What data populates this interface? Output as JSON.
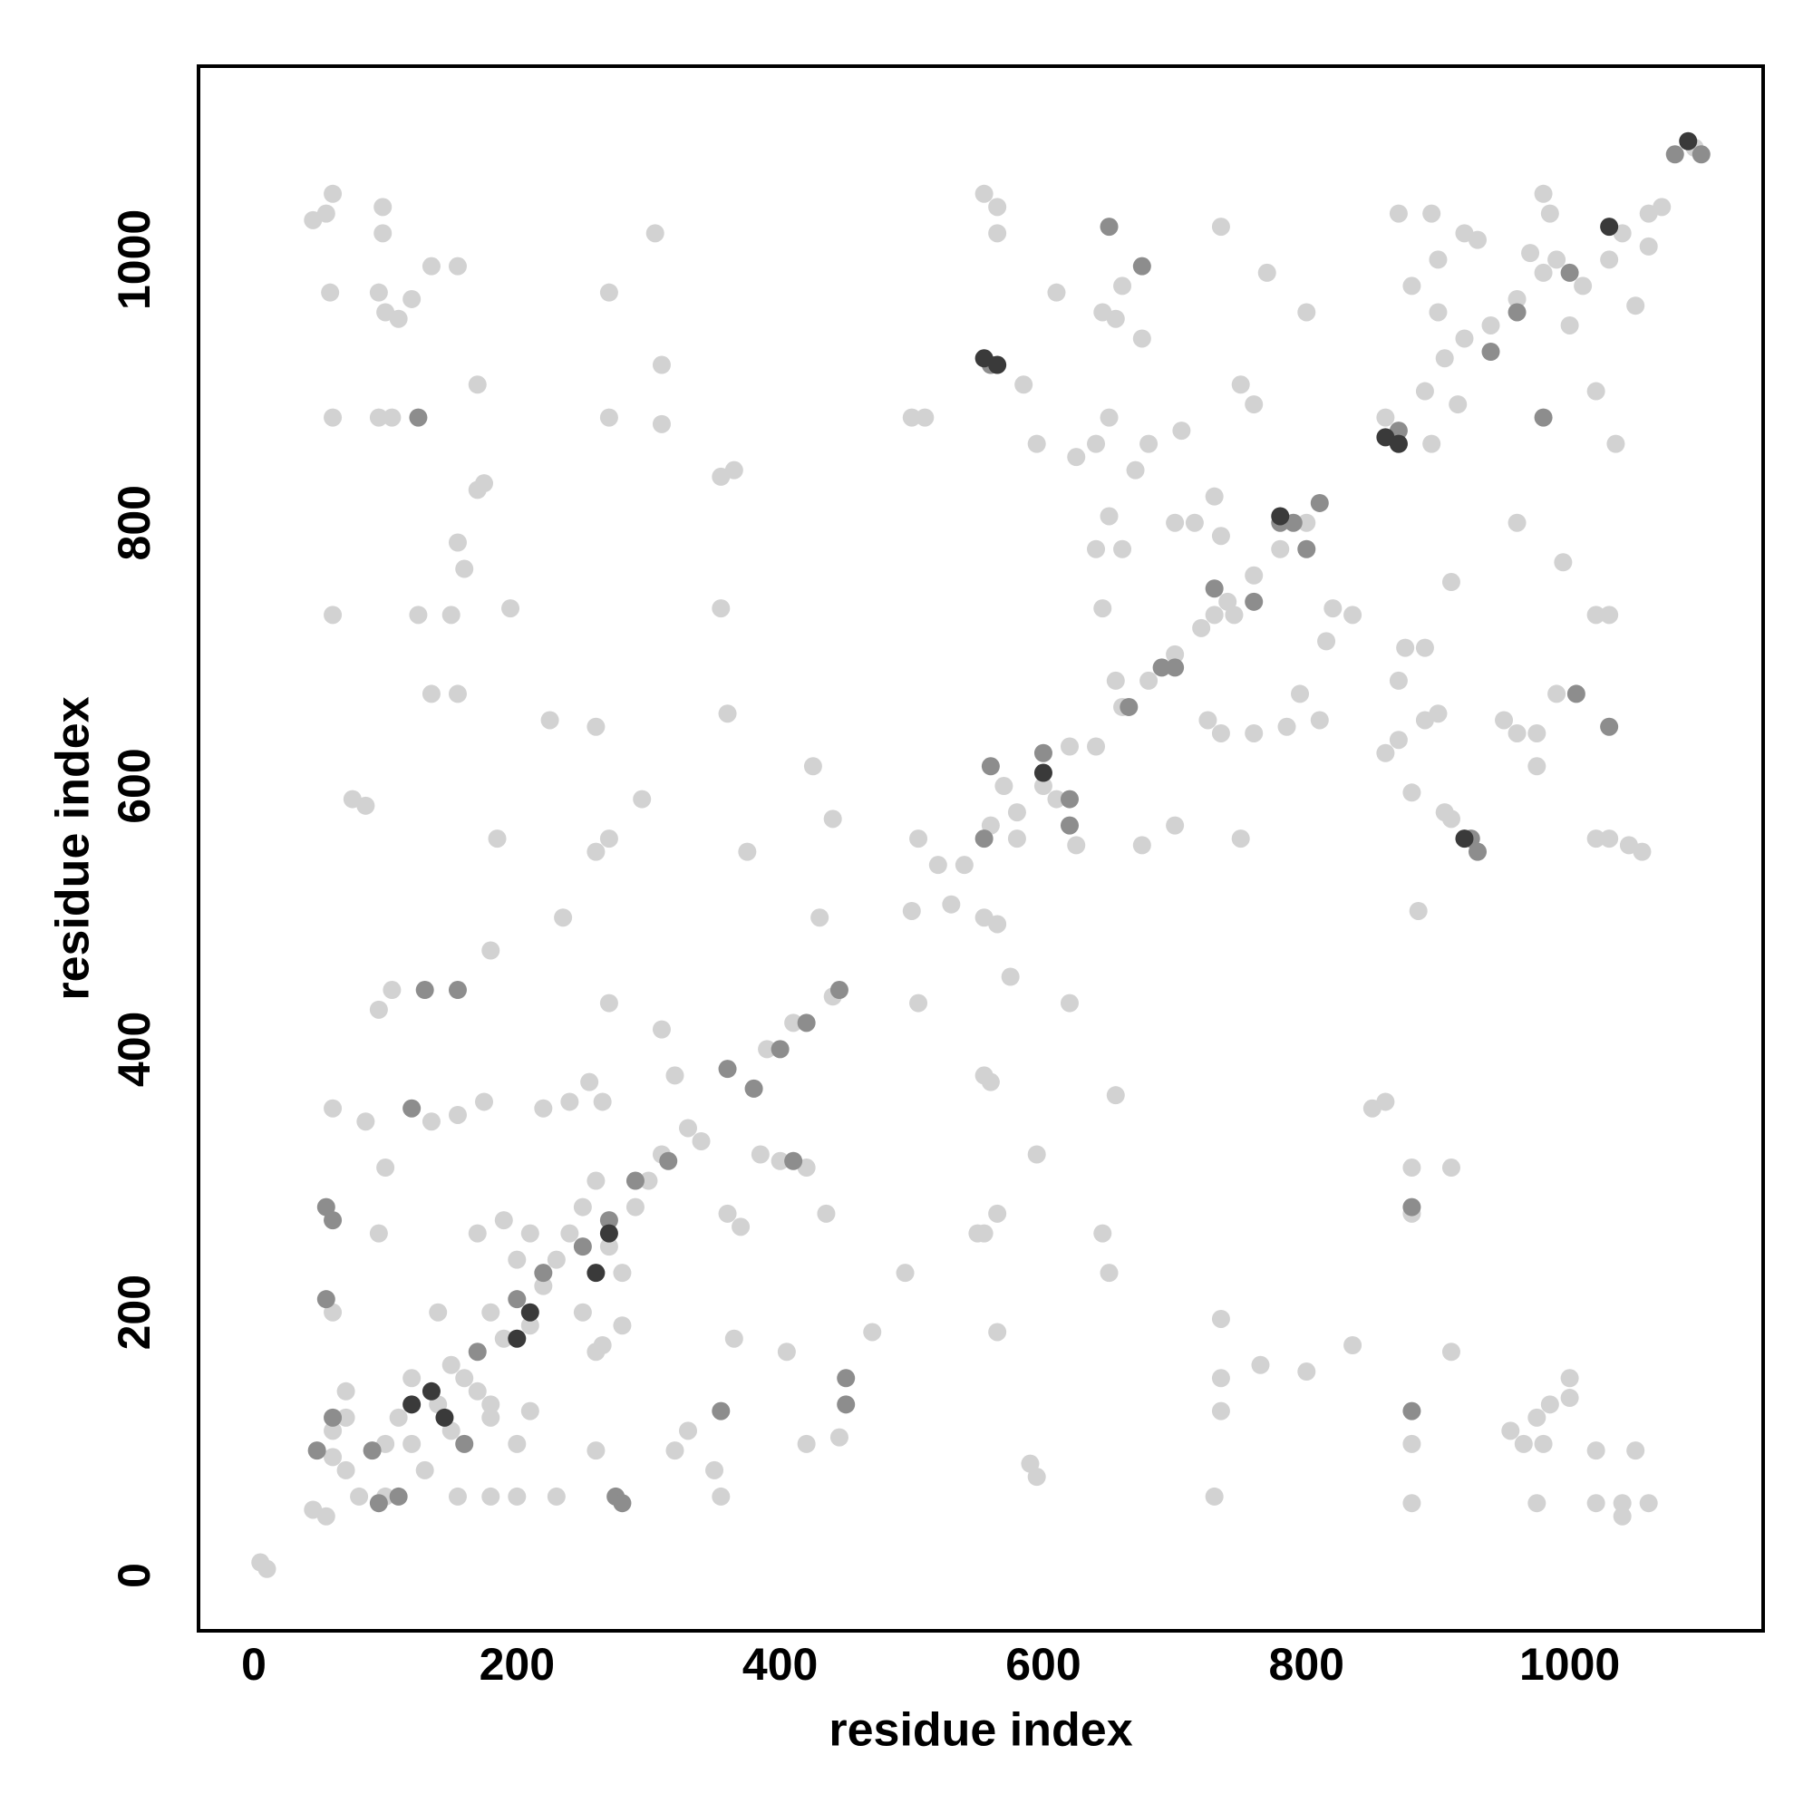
{
  "chart_data": {
    "type": "scatter",
    "xlabel": "residue index",
    "ylabel": "residue index",
    "xlim": [
      -42,
      1147
    ],
    "ylim": [
      -42,
      1147
    ],
    "xticks": [
      0,
      200,
      400,
      600,
      800,
      1000
    ],
    "yticks": [
      0,
      200,
      400,
      600,
      800,
      1000
    ],
    "grid": false,
    "series": [
      {
        "color": "#d2d2d2",
        "x": [
          5,
          10,
          45,
          55,
          55,
          60,
          45,
          58,
          98,
          98,
          95,
          100,
          110,
          120,
          135,
          155,
          60,
          95,
          105,
          170,
          170,
          175,
          155,
          160,
          60,
          125,
          150,
          195,
          135,
          155,
          225,
          260,
          75,
          85,
          185,
          270,
          260,
          295,
          355,
          360,
          355,
          365,
          270,
          270,
          305,
          310,
          310,
          375,
          425,
          430,
          440,
          235,
          180,
          105,
          95,
          270,
          310,
          320,
          255,
          265,
          240,
          220,
          135,
          85,
          155,
          175,
          60,
          100,
          95,
          60,
          70,
          70,
          180,
          210,
          180,
          200,
          155,
          230,
          260,
          265,
          280,
          330,
          320,
          350,
          355,
          365,
          405,
          420,
          435,
          360,
          370,
          385,
          400,
          420,
          470,
          445,
          495,
          520,
          530,
          540,
          555,
          565,
          560,
          575,
          565,
          555,
          565,
          590,
          595,
          595,
          595,
          610,
          625,
          640,
          650,
          645,
          655,
          660,
          640,
          645,
          650,
          655,
          660,
          670,
          675,
          675,
          680,
          700,
          700,
          705,
          715,
          730,
          735,
          725,
          735,
          745,
          730,
          760,
          750,
          750,
          760,
          735,
          770,
          800,
          785,
          795,
          810,
          820,
          835,
          815,
          765,
          800,
          730,
          735,
          735,
          735,
          655,
          645,
          650,
          620,
          625,
          580,
          550,
          555,
          505,
          500,
          505,
          500,
          510,
          555,
          565,
          565,
          585,
          850,
          860,
          835,
          880,
          880,
          880,
          885,
          880,
          910,
          910,
          880,
          870,
          875,
          890,
          860,
          870,
          890,
          900,
          905,
          910,
          895,
          910,
          905,
          915,
          920,
          930,
          900,
          900,
          880,
          895,
          870,
          860,
          950,
          960,
          975,
          975,
          990,
          995,
          960,
          955,
          965,
          975,
          980,
          975,
          985,
          1000,
          1000,
          1020,
          1020,
          1040,
          1040,
          1050,
          1060,
          1020,
          1030,
          1045,
          1055,
          1020,
          1030,
          1020,
          1035,
          1050,
          1060,
          1070,
          1095,
          985,
          980,
          1000,
          1010,
          1030,
          1040,
          990,
          1060,
          970,
          100,
          110,
          120,
          130,
          140,
          150,
          160,
          170,
          180,
          190,
          200,
          210,
          220,
          230,
          240,
          250,
          260,
          270,
          280,
          290,
          300,
          330,
          340,
          380,
          390,
          410,
          440,
          120,
          140,
          170,
          190,
          250,
          260,
          210,
          180,
          100,
          80,
          70,
          60,
          60,
          150,
          200,
          310,
          600,
          610,
          620,
          640,
          660,
          680,
          700,
          720,
          740,
          760,
          780,
          800,
          580,
          560,
          570,
          890,
          920,
          940,
          960,
          980
        ],
        "values": [
          10,
          5,
          50,
          45,
          1035,
          1050,
          1030,
          975,
          1040,
          1020,
          975,
          960,
          955,
          970,
          995,
          995,
          880,
          880,
          880,
          905,
          825,
          830,
          785,
          765,
          730,
          730,
          730,
          735,
          670,
          670,
          650,
          645,
          590,
          585,
          560,
          560,
          550,
          590,
          735,
          655,
          835,
          840,
          975,
          880,
          1020,
          920,
          875,
          550,
          615,
          500,
          575,
          500,
          475,
          445,
          430,
          435,
          415,
          380,
          375,
          360,
          360,
          355,
          345,
          345,
          350,
          360,
          355,
          310,
          260,
          200,
          140,
          120,
          120,
          125,
          60,
          60,
          60,
          60,
          95,
          175,
          190,
          110,
          95,
          80,
          60,
          180,
          170,
          100,
          275,
          275,
          265,
          320,
          315,
          310,
          185,
          105,
          230,
          540,
          510,
          540,
          500,
          495,
          375,
          455,
          275,
          260,
          185,
          85,
          75,
          320,
          860,
          975,
          850,
          860,
          880,
          960,
          955,
          980,
          780,
          735,
          805,
          680,
          780,
          840,
          555,
          940,
          860,
          570,
          800,
          870,
          800,
          820,
          790,
          650,
          640,
          730,
          730,
          640,
          560,
          905,
          890,
          1025,
          990,
          960,
          645,
          670,
          650,
          735,
          730,
          710,
          160,
          155,
          60,
          125,
          195,
          150,
          365,
          260,
          230,
          435,
          555,
          560,
          260,
          380,
          560,
          505,
          435,
          880,
          880,
          1050,
          1040,
          1020,
          905,
          355,
          360,
          175,
          310,
          275,
          100,
          505,
          55,
          310,
          170,
          595,
          680,
          705,
          705,
          625,
          635,
          650,
          655,
          580,
          575,
          860,
          755,
          925,
          890,
          1020,
          1015,
          960,
          1000,
          980,
          1035,
          1035,
          880,
          650,
          640,
          640,
          615,
          670,
          770,
          800,
          110,
          100,
          120,
          100,
          55,
          130,
          135,
          150,
          95,
          55,
          45,
          55,
          95,
          55,
          560,
          560,
          555,
          550,
          730,
          730,
          900,
          860,
          965,
          1035,
          1040,
          1085,
          1035,
          1050,
          950,
          980,
          1000,
          1020,
          1000,
          1010,
          1005,
          100,
          120,
          100,
          80,
          130,
          160,
          150,
          140,
          200,
          180,
          240,
          260,
          220,
          240,
          260,
          280,
          300,
          250,
          230,
          280,
          300,
          340,
          330,
          370,
          400,
          420,
          440,
          150,
          200,
          260,
          270,
          200,
          170,
          190,
          130,
          60,
          60,
          80,
          110,
          90,
          110,
          100,
          320,
          600,
          590,
          630,
          630,
          660,
          680,
          700,
          720,
          740,
          760,
          780,
          800,
          580,
          570,
          600,
          900,
          940,
          950,
          970,
          990
        ]
      },
      {
        "color": "#8d8d8d",
        "x": [
          48,
          60,
          55,
          55,
          60,
          90,
          95,
          120,
          125,
          130,
          155,
          110,
          160,
          170,
          200,
          220,
          250,
          270,
          290,
          275,
          280,
          315,
          355,
          360,
          380,
          400,
          420,
          445,
          450,
          450,
          410,
          555,
          560,
          600,
          620,
          620,
          650,
          665,
          690,
          700,
          730,
          760,
          780,
          800,
          810,
          880,
          880,
          870,
          870,
          925,
          930,
          940,
          960,
          980,
          1000,
          1005,
          1030,
          675,
          560,
          790,
          1080,
          1100
        ],
        "values": [
          95,
          120,
          210,
          280,
          270,
          95,
          55,
          355,
          880,
          445,
          445,
          60,
          100,
          170,
          210,
          230,
          250,
          270,
          300,
          60,
          55,
          315,
          125,
          385,
          370,
          400,
          420,
          445,
          130,
          150,
          315,
          560,
          615,
          625,
          570,
          590,
          1025,
          660,
          690,
          690,
          750,
          740,
          800,
          780,
          815,
          125,
          280,
          860,
          870,
          560,
          550,
          930,
          960,
          880,
          990,
          670,
          645,
          995,
          920,
          800,
          1080,
          1080
        ]
      },
      {
        "color": "#3a3a3a",
        "x": [
          120,
          135,
          145,
          200,
          210,
          260,
          270,
          555,
          565,
          860,
          870,
          920,
          1030,
          600,
          1090,
          780
        ],
        "values": [
          130,
          140,
          120,
          180,
          200,
          230,
          260,
          925,
          920,
          865,
          860,
          560,
          1025,
          610,
          1090,
          805
        ]
      }
    ]
  }
}
